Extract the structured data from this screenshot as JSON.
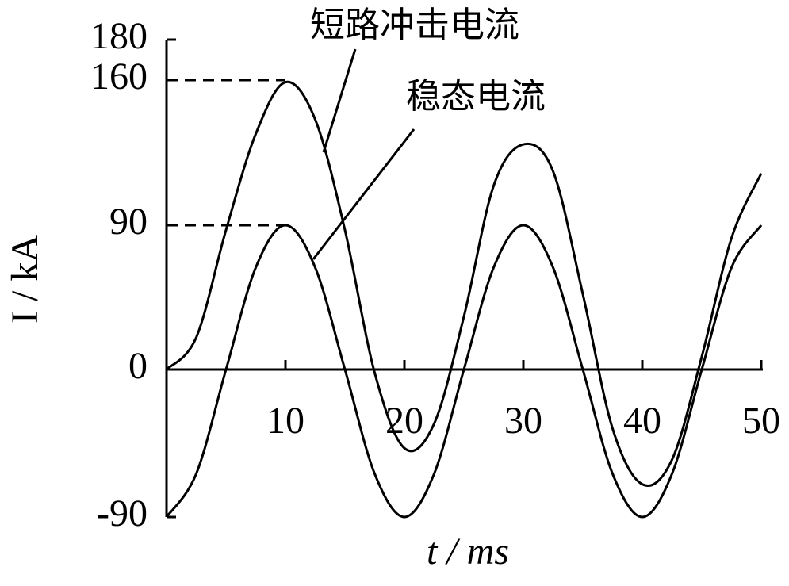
{
  "chart_data": {
    "type": "line",
    "x_label": "t / ms",
    "y_label": "I / kA",
    "x": [
      0,
      2.5,
      5,
      7.5,
      10,
      12.5,
      15,
      17.5,
      20,
      22.5,
      25,
      27.5,
      30,
      32.5,
      35,
      37.5,
      40,
      42.5,
      45,
      47.5,
      50
    ],
    "series": [
      {
        "name": "短路冲击电流",
        "color": "#000000",
        "values": [
          0,
          20,
          87,
          134,
          159,
          141,
          87,
          -2,
          -48,
          -33,
          33,
          109,
          129,
          116,
          47,
          -36,
          -70,
          -55,
          8,
          82,
          115
        ]
      },
      {
        "name": "稳态电流",
        "color": "#000000",
        "values": [
          -90,
          -63.6,
          0,
          63.6,
          90,
          63.6,
          0,
          -63.6,
          -90,
          -63.6,
          0,
          63.6,
          90,
          63.6,
          0,
          -63.6,
          -90,
          -63.6,
          0,
          63.6,
          90
        ]
      }
    ],
    "xlim": [
      0,
      50
    ],
    "xticks": [
      10,
      20,
      30,
      40,
      50
    ],
    "ylim": [
      -90,
      180
    ],
    "yticks": [
      -90,
      0,
      90,
      160,
      180
    ],
    "reference_lines": [
      160,
      90
    ]
  }
}
